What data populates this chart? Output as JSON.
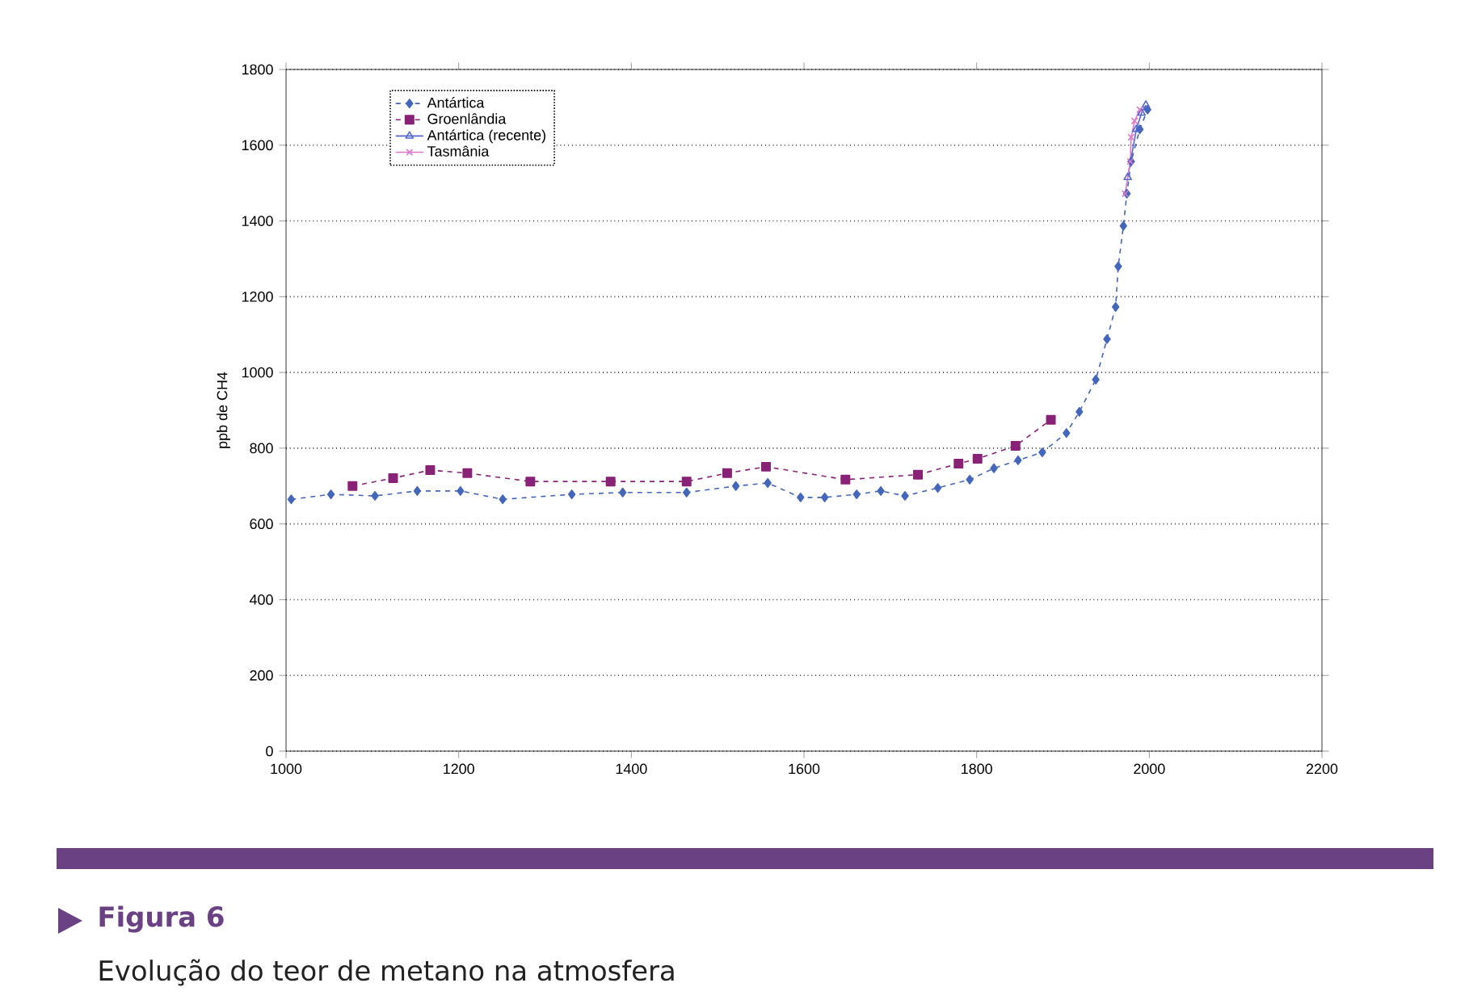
{
  "chart_data": {
    "type": "line",
    "title": "Figura 6",
    "subtitle": "Evolução do teor de metano na atmosfera",
    "ylabel": "ppb de CH4",
    "xlim": [
      1000,
      2200
    ],
    "xticks": [
      1000,
      1200,
      1400,
      1600,
      1800,
      2000,
      2200
    ],
    "ylim": [
      0,
      1800
    ],
    "yticks": [
      0,
      200,
      400,
      600,
      800,
      1000,
      1200,
      1400,
      1600,
      1800
    ],
    "grid": "y",
    "legend": "top left",
    "series": [
      {
        "name": "Antártica",
        "color": "#4466bb",
        "marker": "diamond",
        "line_style": "dashed",
        "x": [
          1006,
          1052,
          1103,
          1152,
          1202,
          1251,
          1331,
          1390,
          1464,
          1521,
          1558,
          1596,
          1624,
          1661,
          1689,
          1717,
          1755,
          1792,
          1820,
          1848,
          1876,
          1904,
          1919,
          1938,
          1951,
          1961,
          1964,
          1970,
          1974,
          1979,
          1989,
          1998
        ],
        "values": [
          665,
          678,
          674,
          687,
          687,
          665,
          678,
          683,
          683,
          700,
          708,
          670,
          670,
          678,
          687,
          674,
          695,
          717,
          747,
          768,
          789,
          840,
          896,
          981,
          1088,
          1173,
          1280,
          1387,
          1472,
          1557,
          1642,
          1694
        ]
      },
      {
        "name": "Groenlândia",
        "color": "#882277",
        "marker": "square",
        "line_style": "dashed",
        "x": [
          1077,
          1124,
          1167,
          1210,
          1283,
          1376,
          1464,
          1511,
          1556,
          1648,
          1732,
          1779,
          1801,
          1845,
          1886
        ],
        "values": [
          700,
          721,
          742,
          734,
          712,
          712,
          712,
          734,
          751,
          717,
          730,
          759,
          772,
          806,
          875
        ]
      },
      {
        "name": "Antártica (recente)",
        "color": "#5566cc",
        "marker": "triangle",
        "line_style": "solid",
        "x": [
          1975,
          1985,
          1991,
          1996
        ],
        "values": [
          1515,
          1642,
          1685,
          1706
        ]
      },
      {
        "name": "Tasmânia",
        "color": "#dd77cc",
        "marker": "cross",
        "line_style": "solid",
        "x": [
          1972,
          1978,
          1979,
          1983,
          1989
        ],
        "values": [
          1472,
          1557,
          1621,
          1664,
          1694
        ]
      }
    ]
  }
}
